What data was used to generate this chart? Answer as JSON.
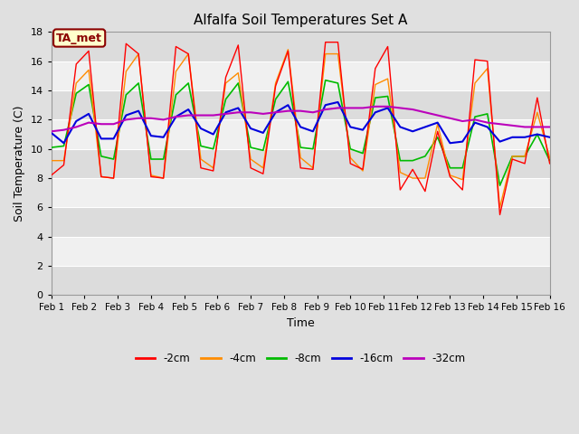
{
  "title": "Alfalfa Soil Temperatures Set A",
  "xlabel": "Time",
  "ylabel": "Soil Temperature (C)",
  "xlim": [
    0,
    15
  ],
  "ylim": [
    0,
    18
  ],
  "yticks": [
    0,
    2,
    4,
    6,
    8,
    10,
    12,
    14,
    16,
    18
  ],
  "xtick_labels": [
    "Feb 1",
    "Feb 2",
    "Feb 3",
    "Feb 4",
    "Feb 5",
    "Feb 6",
    "Feb 7",
    "Feb 8",
    "Feb 9",
    "Feb 10",
    "Feb 11",
    "Feb 12",
    "Feb 13",
    "Feb 14",
    "Feb 15",
    "Feb 16"
  ],
  "annotation_text": "TA_met",
  "annotation_color": "#8B0000",
  "annotation_bg": "#FFFFCC",
  "colors": {
    "2cm": "#FF0000",
    "4cm": "#FF8C00",
    "8cm": "#00BB00",
    "16cm": "#0000DD",
    "32cm": "#BB00BB"
  },
  "legend_labels": [
    "-2cm",
    "-4cm",
    "-8cm",
    "-16cm",
    "-32cm"
  ],
  "background_color": "#E0E0E0",
  "plot_bg_light": "#F0F0F0",
  "plot_bg_dark": "#DCDCDC",
  "grid_color": "#FFFFFF",
  "t_2cm": [
    8.2,
    8.9,
    15.8,
    16.7,
    8.1,
    8.0,
    17.2,
    16.5,
    8.1,
    8.0,
    17.0,
    16.5,
    8.7,
    8.5,
    14.9,
    17.1,
    8.7,
    8.3,
    14.3,
    16.7,
    8.7,
    8.6,
    17.3,
    17.3,
    9.0,
    8.6,
    15.5,
    17.0,
    7.2,
    8.6,
    7.1,
    11.2,
    8.1,
    7.2,
    16.1,
    16.0,
    5.5,
    9.3,
    9.0,
    13.5,
    9.0
  ],
  "t_4cm": [
    9.2,
    9.2,
    14.5,
    15.4,
    8.1,
    8.0,
    15.3,
    16.5,
    8.2,
    8.0,
    15.3,
    16.5,
    9.3,
    8.7,
    14.5,
    15.2,
    9.3,
    8.7,
    14.5,
    16.8,
    9.4,
    8.7,
    16.5,
    16.5,
    9.4,
    8.5,
    14.4,
    14.8,
    8.4,
    8.0,
    8.0,
    11.7,
    8.2,
    7.9,
    14.5,
    15.5,
    6.0,
    9.5,
    9.5,
    12.5,
    9.4
  ],
  "t_8cm": [
    10.1,
    10.2,
    13.8,
    14.4,
    9.5,
    9.3,
    13.7,
    14.5,
    9.3,
    9.3,
    13.7,
    14.5,
    10.2,
    10.0,
    13.4,
    14.5,
    10.1,
    9.9,
    13.4,
    14.6,
    10.1,
    10.0,
    14.7,
    14.5,
    10.0,
    9.7,
    13.5,
    13.6,
    9.2,
    9.2,
    9.5,
    10.8,
    8.7,
    8.7,
    12.2,
    12.4,
    7.5,
    9.5,
    9.5,
    11.0,
    9.2
  ],
  "t_16cm": [
    11.1,
    10.4,
    11.9,
    12.4,
    10.7,
    10.7,
    12.3,
    12.6,
    10.9,
    10.8,
    12.2,
    12.7,
    11.4,
    11.0,
    12.5,
    12.8,
    11.4,
    11.1,
    12.5,
    13.0,
    11.5,
    11.2,
    13.0,
    13.2,
    11.5,
    11.3,
    12.5,
    12.8,
    11.5,
    11.2,
    11.5,
    11.8,
    10.4,
    10.5,
    11.8,
    11.5,
    10.5,
    10.8,
    10.8,
    11.0,
    10.8
  ],
  "t_32cm": [
    11.2,
    11.3,
    11.5,
    11.8,
    11.7,
    11.7,
    12.0,
    12.1,
    12.1,
    12.0,
    12.2,
    12.3,
    12.3,
    12.3,
    12.4,
    12.5,
    12.5,
    12.4,
    12.5,
    12.6,
    12.6,
    12.5,
    12.7,
    12.8,
    12.8,
    12.8,
    12.9,
    12.9,
    12.8,
    12.7,
    12.5,
    12.3,
    12.1,
    11.9,
    12.0,
    11.8,
    11.7,
    11.6,
    11.5,
    11.5,
    11.5
  ]
}
